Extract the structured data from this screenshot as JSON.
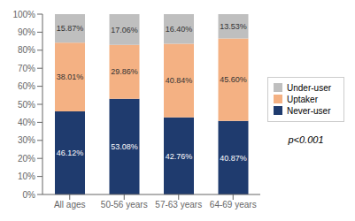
{
  "chart_data": {
    "type": "bar",
    "stacked": true,
    "categories": [
      "All ages",
      "50-56 years",
      "57-63 years",
      "64-69 years"
    ],
    "series": [
      {
        "name": "Never-user",
        "color": "#1f3b6e",
        "values": [
          46.12,
          53.08,
          42.76,
          40.87
        ],
        "value_labels": [
          "46.12%",
          "53.08%",
          "42.76%",
          "40.87%"
        ]
      },
      {
        "name": "Uptaker",
        "color": "#f4b183",
        "values": [
          38.01,
          29.86,
          40.84,
          45.6
        ],
        "value_labels": [
          "38.01%",
          "29.86%",
          "40.84%",
          "45.60%"
        ]
      },
      {
        "name": "Under-user",
        "color": "#bfbfbf",
        "values": [
          15.87,
          17.06,
          16.4,
          13.53
        ],
        "value_labels": [
          "15.87%",
          "17.06%",
          "16.40%",
          "13.53%"
        ]
      }
    ],
    "ylim": [
      0,
      100
    ],
    "yticks": [
      {
        "value": 0,
        "label": "0%"
      },
      {
        "value": 10,
        "label": "10%"
      },
      {
        "value": 20,
        "label": "20%"
      },
      {
        "value": 30,
        "label": "30%"
      },
      {
        "value": 40,
        "label": "40%"
      },
      {
        "value": 50,
        "label": "50%"
      },
      {
        "value": 60,
        "label": "60%"
      },
      {
        "value": 70,
        "label": "70%"
      },
      {
        "value": 80,
        "label": "80%"
      },
      {
        "value": 90,
        "label": "90%"
      },
      {
        "value": 100,
        "label": "100%"
      }
    ],
    "grid": false,
    "legend": "right",
    "data_labels": true,
    "annotations": [
      "p<0.001"
    ]
  }
}
